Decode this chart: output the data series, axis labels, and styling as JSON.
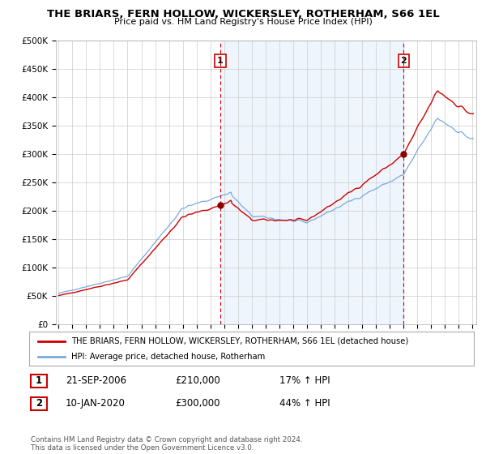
{
  "title": "THE BRIARS, FERN HOLLOW, WICKERSLEY, ROTHERHAM, S66 1EL",
  "subtitle": "Price paid vs. HM Land Registry's House Price Index (HPI)",
  "ylim": [
    0,
    500000
  ],
  "yticks": [
    0,
    50000,
    100000,
    150000,
    200000,
    250000,
    300000,
    350000,
    400000,
    450000,
    500000
  ],
  "ytick_labels": [
    "£0",
    "£50K",
    "£100K",
    "£150K",
    "£200K",
    "£250K",
    "£300K",
    "£350K",
    "£400K",
    "£450K",
    "£500K"
  ],
  "sale1_date": 2006.73,
  "sale1_price": 210000,
  "sale2_date": 2020.03,
  "sale2_price": 300000,
  "sale1_text": "21-SEP-2006",
  "sale1_amount": "£210,000",
  "sale1_hpi": "17% ↑ HPI",
  "sale2_text": "10-JAN-2020",
  "sale2_amount": "£300,000",
  "sale2_hpi": "44% ↑ HPI",
  "legend_line1": "THE BRIARS, FERN HOLLOW, WICKERSLEY, ROTHERHAM, S66 1EL (detached house)",
  "legend_line2": "HPI: Average price, detached house, Rotherham",
  "footer": "Contains HM Land Registry data © Crown copyright and database right 2024.\nThis data is licensed under the Open Government Licence v3.0.",
  "line_color_red": "#cc0000",
  "line_color_blue": "#7aaadd",
  "fill_color_blue": "#d0e4f7",
  "background_color": "#ffffff",
  "grid_color": "#cccccc"
}
